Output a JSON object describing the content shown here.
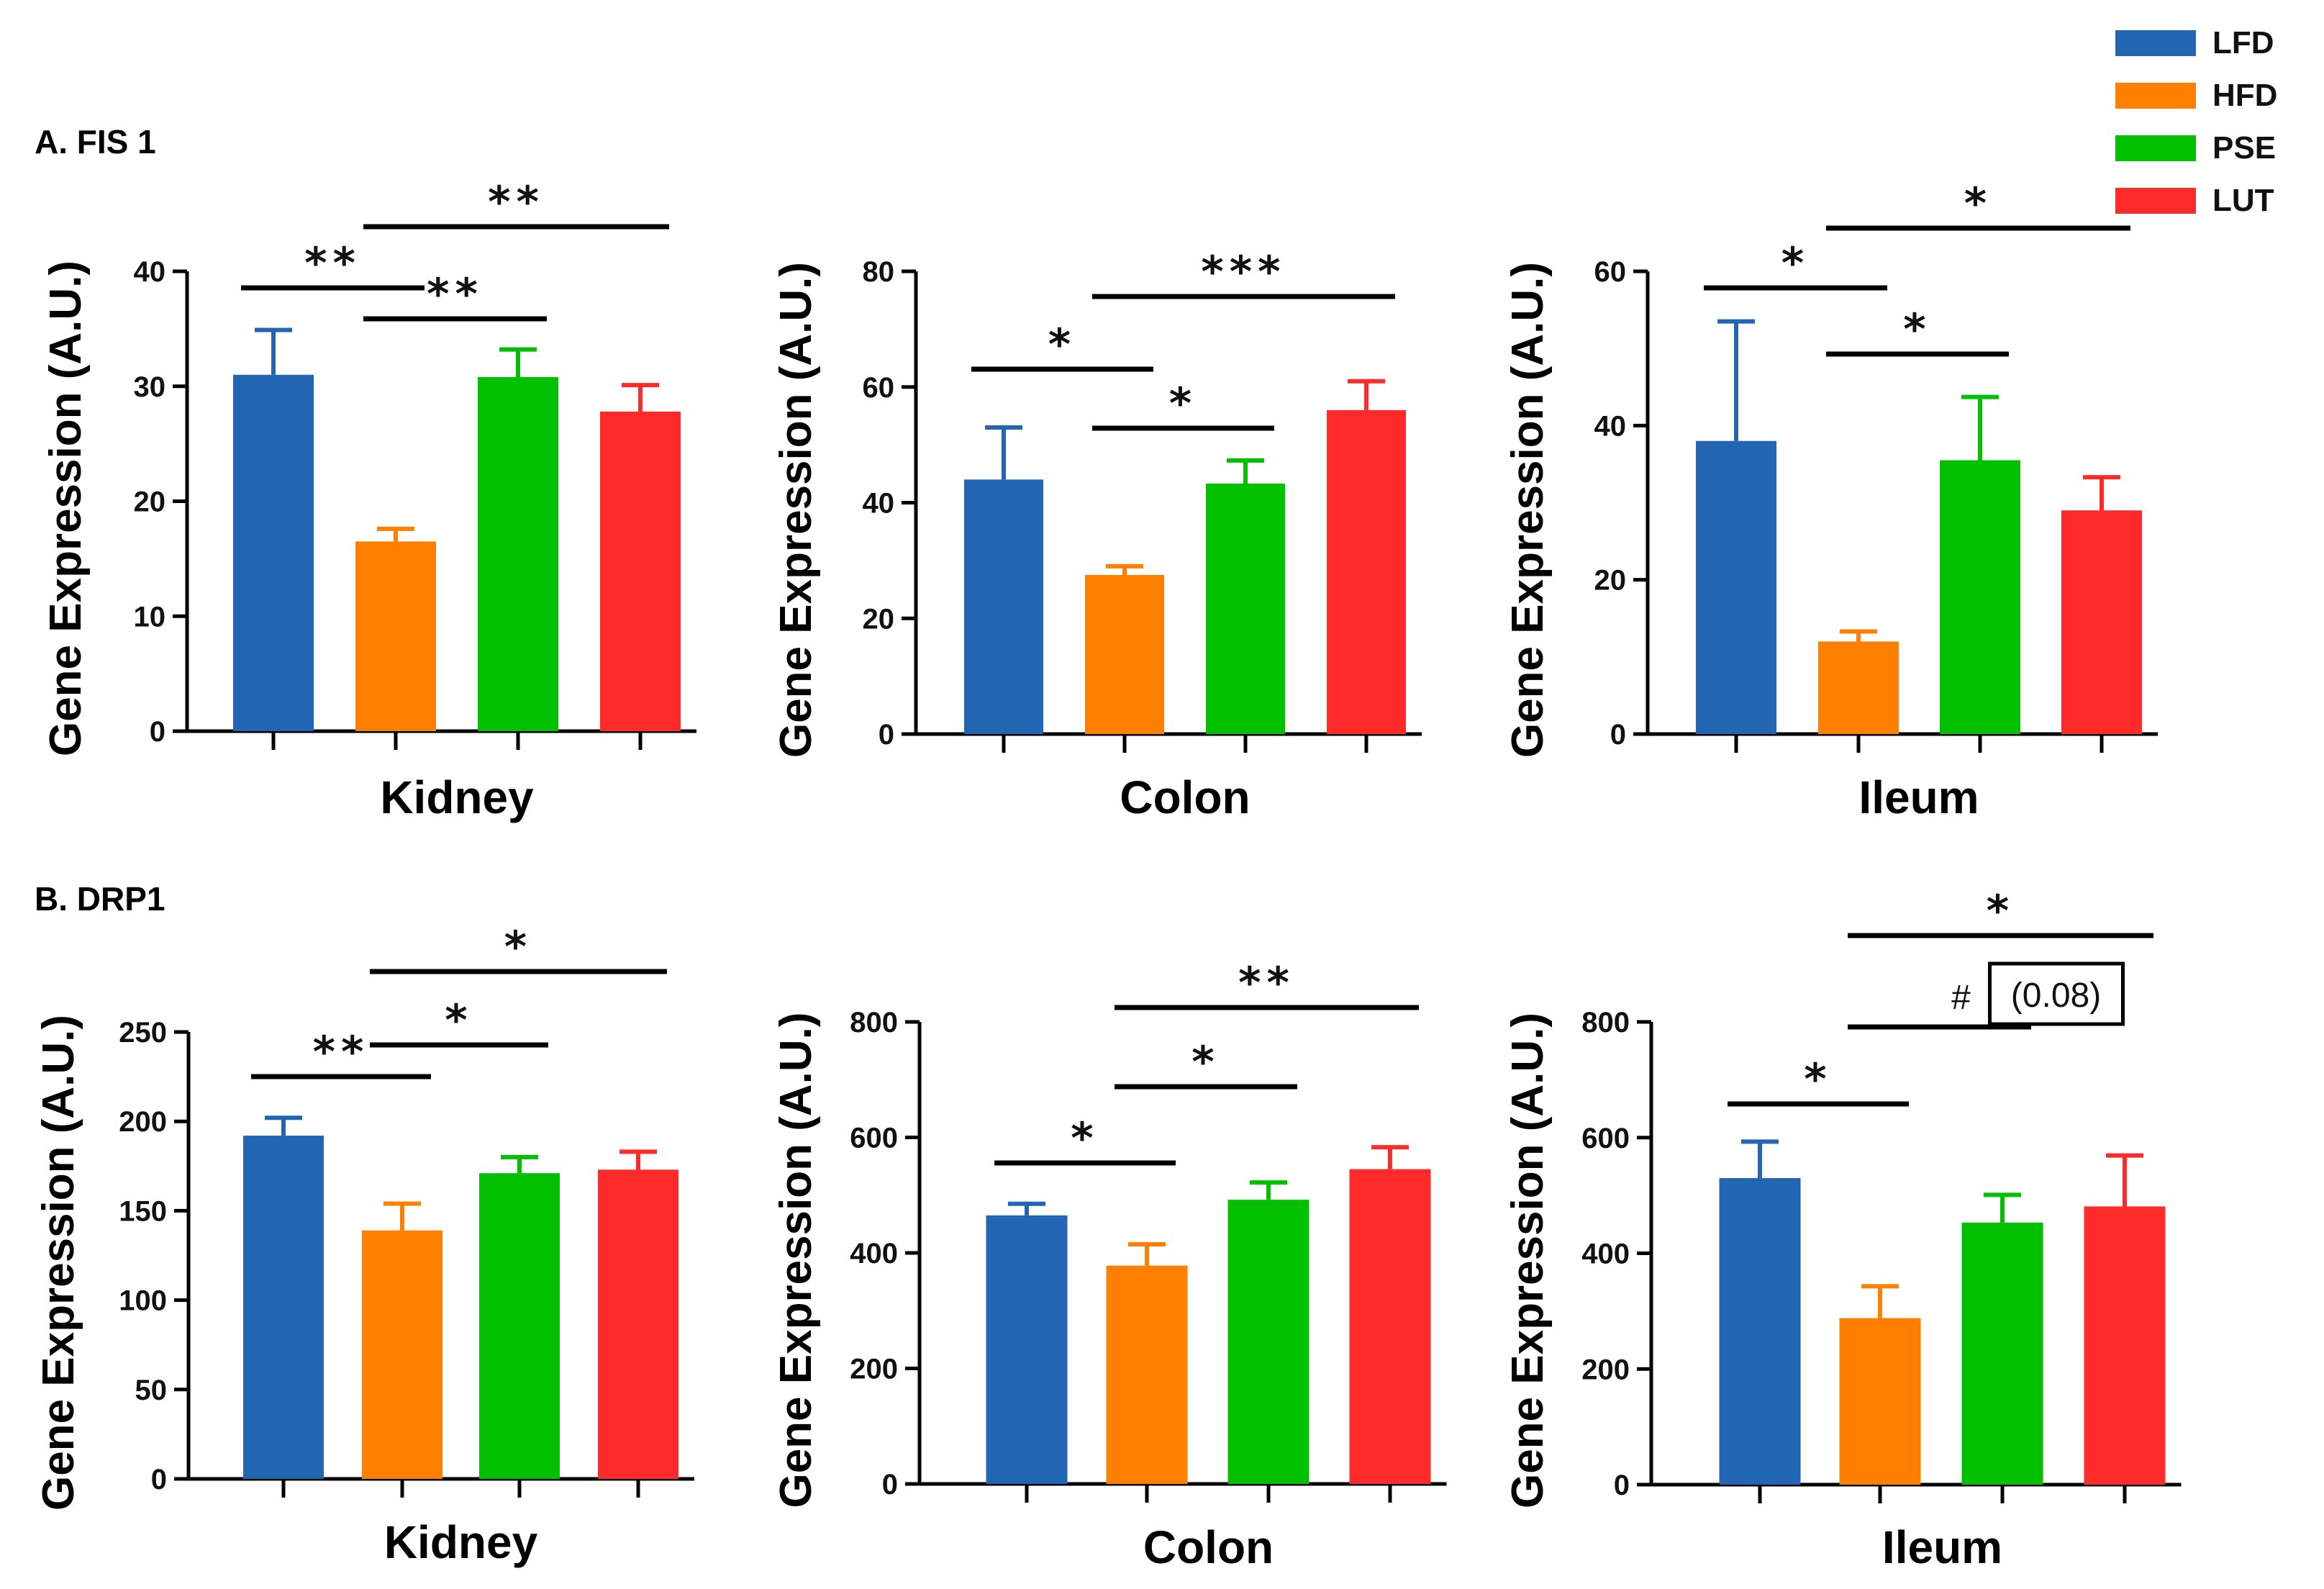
{
  "colors": {
    "LFD": "#2266b3",
    "HFD": "#ff8000",
    "PSE": "#00c000",
    "LUT": "#ff2a2a"
  },
  "legend": [
    "LFD",
    "HFD",
    "PSE",
    "LUT"
  ],
  "section_titles": {
    "a": "A. FIS 1",
    "b": "B. DRP1"
  },
  "chart_data": [
    {
      "type": "bar",
      "section": "A. FIS 1",
      "xlabel": "Kidney",
      "ylabel": "Gene Expression (A.U.)",
      "categories": [
        "LFD",
        "HFD",
        "PSE",
        "LUT"
      ],
      "values": [
        31,
        16.5,
        30.8,
        27.8
      ],
      "errors": [
        3.9,
        1.1,
        2.4,
        2.3
      ],
      "ylim": [
        0,
        40
      ],
      "yticks": [
        0,
        10,
        20,
        30,
        40
      ],
      "significance": [
        {
          "from": 0,
          "to": 1,
          "label": "**"
        },
        {
          "from": 1,
          "to": 2,
          "label": "**"
        },
        {
          "from": 1,
          "to": 3,
          "label": "**"
        }
      ]
    },
    {
      "type": "bar",
      "section": "A. FIS 1",
      "xlabel": "Colon",
      "ylabel": "Gene Expression (A.U.)",
      "categories": [
        "LFD",
        "HFD",
        "PSE",
        "LUT"
      ],
      "values": [
        44,
        27.5,
        43.3,
        56
      ],
      "errors": [
        9,
        1.5,
        4,
        5
      ],
      "ylim": [
        0,
        80
      ],
      "yticks": [
        0,
        20,
        40,
        60,
        80
      ],
      "significance": [
        {
          "from": 0,
          "to": 1,
          "label": "*"
        },
        {
          "from": 1,
          "to": 2,
          "label": "*"
        },
        {
          "from": 1,
          "to": 3,
          "label": "***"
        }
      ]
    },
    {
      "type": "bar",
      "section": "A. FIS 1",
      "xlabel": "Ileum",
      "ylabel": "Gene Expression (A.U.)",
      "categories": [
        "LFD",
        "HFD",
        "PSE",
        "LUT"
      ],
      "values": [
        38,
        12,
        35.5,
        29
      ],
      "errors": [
        15.5,
        1.3,
        8.2,
        4.3
      ],
      "ylim": [
        0,
        60
      ],
      "yticks": [
        0,
        20,
        40,
        60
      ],
      "significance": [
        {
          "from": 0,
          "to": 1,
          "label": "*"
        },
        {
          "from": 1,
          "to": 2,
          "label": "*"
        },
        {
          "from": 1,
          "to": 3,
          "label": "*"
        }
      ]
    },
    {
      "type": "bar",
      "section": "B. DRP1",
      "xlabel": "Kidney",
      "ylabel": "Gene Expression (A.U.)",
      "categories": [
        "LFD",
        "HFD",
        "PSE",
        "LUT"
      ],
      "values": [
        192,
        139,
        171,
        173
      ],
      "errors": [
        10,
        15,
        9,
        10
      ],
      "ylim": [
        0,
        250
      ],
      "yticks": [
        0,
        50,
        100,
        150,
        200,
        250
      ],
      "significance": [
        {
          "from": 0,
          "to": 1,
          "label": "**"
        },
        {
          "from": 1,
          "to": 2,
          "label": "*"
        },
        {
          "from": 1,
          "to": 3,
          "label": "*"
        }
      ]
    },
    {
      "type": "bar",
      "section": "B. DRP1",
      "xlabel": "Colon",
      "ylabel": "Gene Expression (A.U.)",
      "categories": [
        "LFD",
        "HFD",
        "PSE",
        "LUT"
      ],
      "values": [
        465,
        378,
        492,
        545
      ],
      "errors": [
        20,
        37,
        30,
        38
      ],
      "ylim": [
        0,
        800
      ],
      "yticks": [
        0,
        200,
        400,
        600,
        800
      ],
      "significance": [
        {
          "from": 0,
          "to": 1,
          "label": "*"
        },
        {
          "from": 1,
          "to": 2,
          "label": "*"
        },
        {
          "from": 1,
          "to": 3,
          "label": "**"
        }
      ]
    },
    {
      "type": "bar",
      "section": "B. DRP1",
      "xlabel": "Ileum",
      "ylabel": "Gene Expression (A.U.)",
      "categories": [
        "LFD",
        "HFD",
        "PSE",
        "LUT"
      ],
      "values": [
        530,
        288,
        453,
        481
      ],
      "errors": [
        63,
        55,
        48,
        88
      ],
      "ylim": [
        0,
        800
      ],
      "yticks": [
        0,
        200,
        400,
        600,
        800
      ],
      "significance": [
        {
          "from": 0,
          "to": 1,
          "label": "*"
        },
        {
          "from": 1,
          "to": 2,
          "label": "# (0.08)"
        },
        {
          "from": 1,
          "to": 3,
          "label": "*"
        }
      ]
    }
  ]
}
